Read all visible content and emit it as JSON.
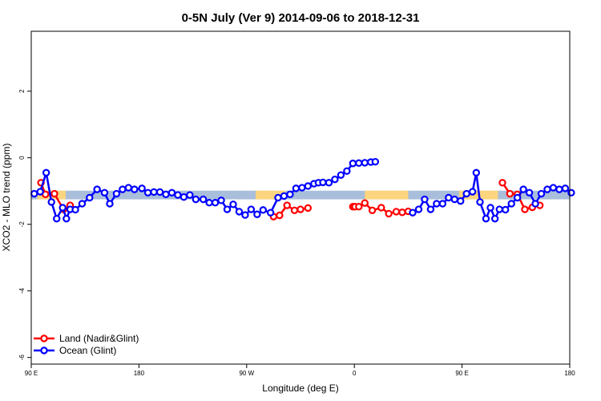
{
  "chart_data": {
    "type": "line",
    "title": "0-5N July (Ver 9)   2014-09-06 to 2018-12-31",
    "xlabel": "Longitude (deg E)",
    "ylabel": "XCO2 - MLO trend (ppm)",
    "xlim": [
      90,
      450
    ],
    "ylim": [
      -6.2,
      3.8
    ],
    "x_ticks": [
      {
        "value": 90,
        "label": "90 E"
      },
      {
        "value": 162,
        "label": "180"
      },
      {
        "value": 234,
        "label": "90 W"
      },
      {
        "value": 306,
        "label": "0"
      },
      {
        "value": 378,
        "label": "90 E"
      },
      {
        "value": 450,
        "label": "180"
      }
    ],
    "y_ticks": [
      {
        "value": -6,
        "label": "-6"
      },
      {
        "value": -4,
        "label": "-4"
      },
      {
        "value": -2,
        "label": "-2"
      },
      {
        "value": 0,
        "label": "0"
      },
      {
        "value": 2,
        "label": "2"
      }
    ],
    "grid": false,
    "legend_position": "bottom-left",
    "band": {
      "y": -1.12,
      "half_width": 0.13,
      "ocean_color": "#a9bedb",
      "land_color": "#fcd57e",
      "land_ranges": [
        [
          94,
          113
        ],
        [
          240,
          260
        ],
        [
          313,
          342
        ],
        [
          376,
          402
        ]
      ]
    },
    "series": [
      {
        "name": "Land (Nadir&Glint)",
        "color": "#ff0000",
        "x": [
          96.5,
          99.5,
          105.5,
          111.5,
          116,
          252,
          256,
          261,
          266,
          270,
          275,
          305,
          305.5,
          306.5,
          309,
          313,
          318,
          324,
          329,
          334,
          338,
          342,
          405,
          410,
          415,
          420,
          425,
          430
        ],
        "y": [
          -0.75,
          -1.1,
          -1.08,
          -1.55,
          -1.43,
          -1.77,
          -1.73,
          -1.43,
          -1.58,
          -1.55,
          -1.51,
          -1.47,
          -1.47,
          -1.47,
          -1.47,
          -1.36,
          -1.58,
          -1.5,
          -1.68,
          -1.62,
          -1.64,
          -1.61,
          -0.75,
          -1.08,
          -1.1,
          -1.55,
          -1.49,
          -1.43
        ]
      },
      {
        "name": "Ocean (Glint)",
        "color": "#0000ff",
        "x": [
          92,
          96,
          100,
          103.5,
          107,
          111,
          113.5,
          116,
          119.5,
          124,
          129,
          134,
          139,
          142.5,
          147,
          151,
          155,
          159,
          164,
          168,
          172,
          176,
          180,
          184,
          188,
          192,
          196,
          200,
          205,
          209,
          213,
          217,
          221,
          225,
          229,
          233,
          237,
          241,
          245,
          250,
          255,
          259,
          263,
          267,
          271,
          275,
          279,
          282,
          285,
          289,
          293,
          297,
          301,
          305,
          309,
          313,
          317,
          320,
          345,
          349,
          353,
          357,
          361,
          365,
          369,
          373,
          377,
          381,
          385,
          387.5,
          390,
          394,
          397,
          400,
          403,
          407,
          411,
          415,
          419,
          423,
          427,
          431,
          435,
          439,
          443,
          447,
          451
        ],
        "y": [
          -1.08,
          -1.02,
          -0.45,
          -1.33,
          -1.83,
          -1.5,
          -1.83,
          -1.55,
          -1.56,
          -1.38,
          -1.2,
          -0.95,
          -1.05,
          -1.38,
          -1.08,
          -0.95,
          -0.9,
          -0.95,
          -0.92,
          -1.05,
          -1.03,
          -1.03,
          -1.1,
          -1.05,
          -1.12,
          -1.18,
          -1.12,
          -1.25,
          -1.25,
          -1.35,
          -1.35,
          -1.28,
          -1.55,
          -1.4,
          -1.62,
          -1.72,
          -1.55,
          -1.7,
          -1.57,
          -1.65,
          -1.2,
          -1.15,
          -1.1,
          -0.92,
          -0.9,
          -0.85,
          -0.78,
          -0.75,
          -0.74,
          -0.75,
          -0.65,
          -0.52,
          -0.4,
          -0.17,
          -0.16,
          -0.15,
          -0.13,
          -0.12,
          -1.65,
          -1.55,
          -1.25,
          -1.55,
          -1.38,
          -1.38,
          -1.2,
          -1.25,
          -1.3,
          -1.08,
          -1.02,
          -0.45,
          -1.33,
          -1.83,
          -1.5,
          -1.83,
          -1.55,
          -1.56,
          -1.38,
          -1.2,
          -0.95,
          -1.05,
          -1.38,
          -1.08,
          -0.95,
          -0.9,
          -0.95,
          -0.92,
          -1.05
        ]
      }
    ]
  }
}
